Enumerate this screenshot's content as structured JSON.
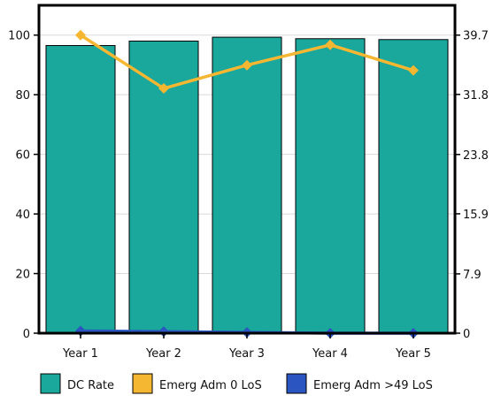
{
  "chart_data": {
    "type": "bar",
    "categories": [
      "Year 1",
      "Year 2",
      "Year 3",
      "Year 4",
      "Year 5"
    ],
    "y_left": {
      "ylim": [
        0,
        110
      ],
      "ticks": [
        0,
        20,
        40,
        60,
        80,
        100
      ]
    },
    "y_right": {
      "ylim": [
        0,
        43.67
      ],
      "ticks": [
        "0",
        "7.9",
        "15.9",
        "23.8",
        "31.8",
        "39.7"
      ],
      "tick_values": [
        0,
        7.9,
        15.9,
        23.8,
        31.8,
        39.7
      ]
    },
    "series": [
      {
        "name": "DC Rate",
        "type": "bar",
        "axis": "left",
        "values": [
          96.5,
          98.0,
          99.3,
          98.8,
          98.5
        ]
      },
      {
        "name": "Emerg Adm 0 LoS",
        "type": "line",
        "axis": "right",
        "values": [
          39.7,
          32.6,
          35.7,
          38.4,
          35.0
        ]
      },
      {
        "name": "Emerg Adm >49 LoS",
        "type": "line",
        "axis": "right",
        "values": [
          0.3,
          0.2,
          0.1,
          0.0,
          0.0
        ]
      }
    ],
    "colors": {
      "DC Rate": "#1aa79c",
      "Emerg Adm 0 LoS": "#f5b731",
      "Emerg Adm >49 LoS": "#2b55c0"
    },
    "grid": true,
    "legend": "bottom",
    "xlabel": "",
    "ylabel": ""
  }
}
